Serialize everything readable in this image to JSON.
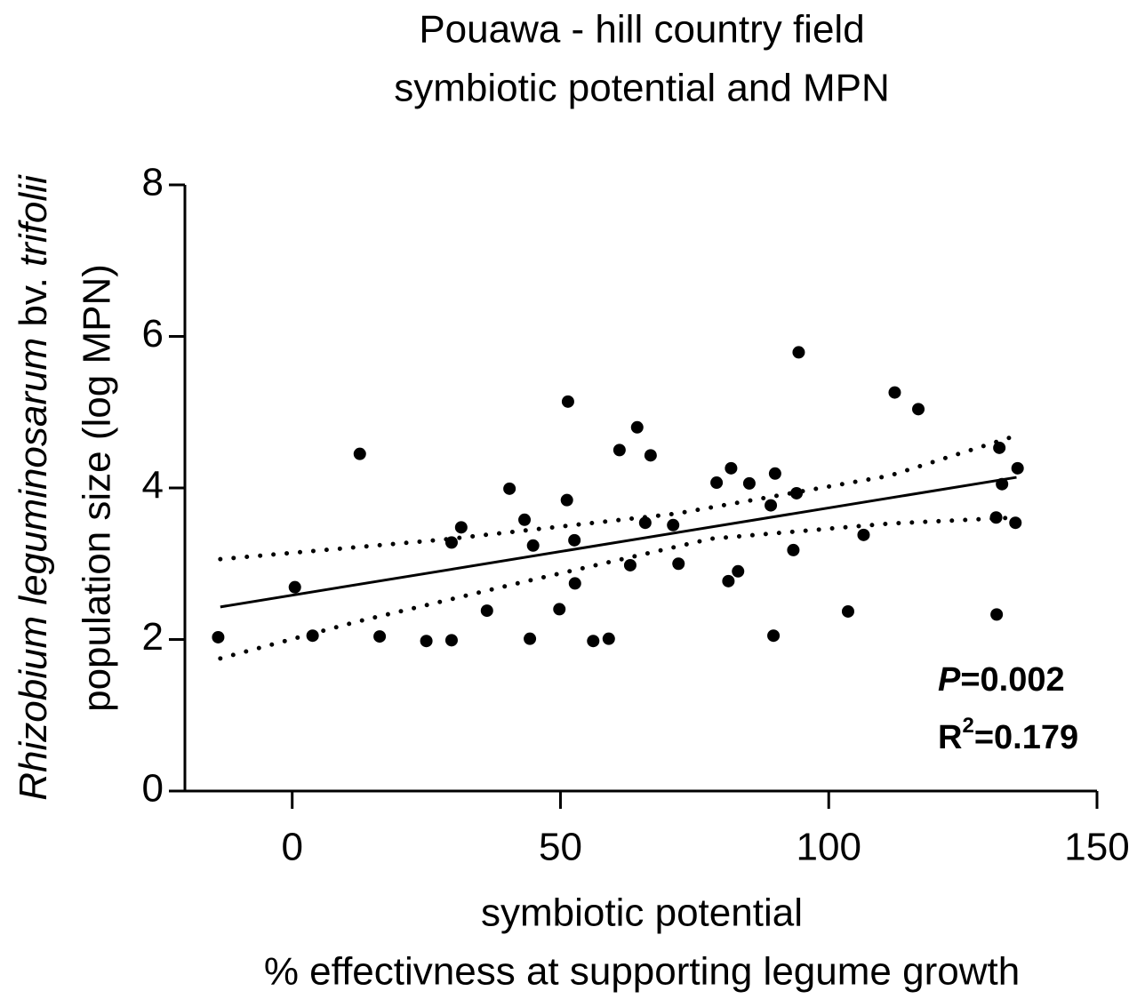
{
  "chart_data": {
    "type": "scatter",
    "title": [
      "Pouawa -  hill country field",
      "symbiotic potential and MPN"
    ],
    "xlabel": [
      "symbiotic potential",
      "% effectivness at supporting legume growth"
    ],
    "ylabel": [
      [
        "Rhizobium leguminosarum",
        " bv. ",
        "trifolii"
      ],
      [
        "population size (log MPN)"
      ]
    ],
    "annotations": [
      [
        "P",
        "=0.002"
      ],
      [
        "R",
        "2",
        "=0.179"
      ]
    ],
    "xlim": [
      -20,
      150
    ],
    "xticks": [
      0,
      50,
      100,
      150
    ],
    "ylim": [
      0,
      8
    ],
    "yticks": [
      0,
      2,
      4,
      6,
      8
    ],
    "color": "#000000",
    "x": [
      -13.8,
      0.5,
      3.8,
      12.6,
      16.3,
      25.0,
      29.7,
      29.7,
      31.5,
      36.3,
      40.5,
      43.3,
      44.3,
      44.9,
      49.8,
      51.2,
      51.4,
      52.6,
      52.7,
      56.1,
      59.0,
      61.0,
      63.0,
      64.3,
      65.8,
      66.8,
      71.0,
      72.0,
      79.1,
      81.3,
      81.8,
      83.1,
      85.2,
      89.2,
      89.7,
      90.0,
      93.4,
      94.0,
      94.4,
      103.6,
      106.5,
      112.3,
      116.7,
      131.3,
      131.2,
      131.8,
      132.3,
      134.8,
      135.2
    ],
    "values": [
      2.03,
      2.69,
      2.05,
      4.45,
      2.04,
      1.98,
      1.99,
      3.28,
      3.48,
      2.38,
      3.99,
      3.58,
      2.01,
      3.24,
      2.4,
      3.84,
      5.14,
      3.31,
      2.74,
      1.98,
      2.01,
      4.5,
      2.98,
      4.8,
      3.54,
      4.43,
      3.51,
      3.0,
      4.07,
      2.77,
      4.26,
      2.9,
      4.06,
      3.77,
      2.05,
      4.19,
      3.18,
      3.93,
      5.79,
      2.37,
      3.38,
      5.26,
      5.04,
      2.33,
      3.61,
      4.53,
      4.05,
      3.54,
      4.26
    ],
    "fit": {
      "x": [
        -13.4,
        135
      ],
      "values": [
        2.43,
        4.14
      ]
    },
    "upper_band": {
      "x": [
        -13.4,
        28.4,
        71.5,
        111.3,
        134.5
      ],
      "values": [
        3.06,
        3.32,
        3.66,
        4.16,
        4.68
      ]
    },
    "lower_band": {
      "x": [
        -13.4,
        11.8,
        44.9,
        78.1,
        111.3,
        135
      ],
      "values": [
        1.75,
        2.23,
        2.79,
        3.33,
        3.53,
        3.61
      ]
    }
  }
}
